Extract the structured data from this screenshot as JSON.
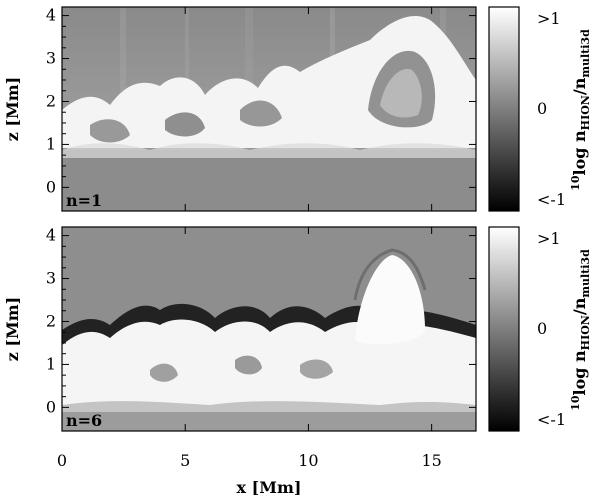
{
  "chart_data": {
    "type": "heatmap",
    "x_axis": {
      "label": "x [Mm]",
      "ticks": [
        "0",
        "5",
        "10",
        "15"
      ],
      "range": [
        0,
        16.8
      ]
    },
    "y_axis": {
      "label": "z [Mm]",
      "ticks": [
        "0",
        "1",
        "2",
        "3",
        "4"
      ],
      "range": [
        -0.55,
        4.2
      ]
    },
    "colormap": "grayscale",
    "colorbar": {
      "label_main": "log n",
      "label_super": "10",
      "label_sub_num": "HION",
      "label_sub_den": "multi3d",
      "ticks": [
        ">1",
        "0",
        "<-1"
      ],
      "range": [
        -1,
        1
      ]
    },
    "panels": [
      {
        "label": "n=1",
        "features": [
          {
            "type": "dome",
            "x": 13.8,
            "z_top": 4.1,
            "width": 4.4
          },
          {
            "type": "band",
            "z_range": [
              0.8,
              2.2
            ],
            "value": "high"
          }
        ]
      },
      {
        "label": "n=6",
        "features": [
          {
            "type": "dome",
            "x": 13.9,
            "z_top": 3.7,
            "width": 3.6
          },
          {
            "type": "band",
            "z_range": [
              0.5,
              1.6
            ],
            "value": "high"
          },
          {
            "type": "rim",
            "z_approx": 1.6,
            "value": "low"
          }
        ]
      }
    ]
  }
}
